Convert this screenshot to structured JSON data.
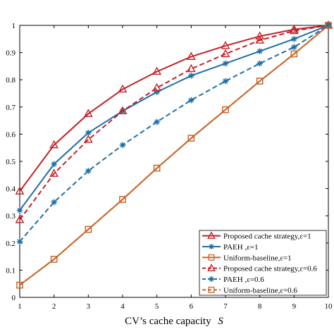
{
  "chart_data": {
    "type": "line",
    "title": "",
    "xlabel": "CV’s cache capacity",
    "xlabel_symbol": "S",
    "ylabel": "",
    "xlim": [
      1,
      10
    ],
    "ylim": [
      0,
      1
    ],
    "x": [
      1,
      2,
      3,
      4,
      5,
      6,
      7,
      8,
      9,
      10
    ],
    "xticks": [
      "1",
      "2",
      "3",
      "4",
      "5",
      "6",
      "7",
      "8",
      "9",
      "10"
    ],
    "yticks": [
      "0",
      "0.1",
      "0.2",
      "0.3",
      "0.4",
      "0.5",
      "0.6",
      "0.7",
      "0.8",
      "0.9",
      "1"
    ],
    "grid": false,
    "legend_position": "bottom-right",
    "series": [
      {
        "name": "Proposed cache strategy,ε=1",
        "color": "#c42026",
        "dash": "solid",
        "marker": "triangle",
        "values": [
          0.39,
          0.56,
          0.675,
          0.765,
          0.83,
          0.885,
          0.925,
          0.96,
          0.985,
          1.0
        ]
      },
      {
        "name": "PAEH ,ε=1",
        "color": "#1f6fa8",
        "dash": "solid",
        "marker": "star",
        "values": [
          0.32,
          0.49,
          0.605,
          0.685,
          0.755,
          0.815,
          0.86,
          0.905,
          0.95,
          1.0
        ]
      },
      {
        "name": "Uniform-baseline,ε=1",
        "color": "#c8652a",
        "dash": "solid",
        "marker": "square",
        "values": [
          0.045,
          0.14,
          0.25,
          0.36,
          0.475,
          0.585,
          0.69,
          0.795,
          0.895,
          1.0
        ]
      },
      {
        "name": "Proposed cache strategy,ε=0.6",
        "color": "#c42026",
        "dash": "dashed",
        "marker": "triangle",
        "values": [
          0.285,
          0.455,
          0.58,
          0.685,
          0.77,
          0.84,
          0.895,
          0.945,
          0.98,
          1.0
        ]
      },
      {
        "name": "PAEH ,ε=0.6",
        "color": "#1f6fa8",
        "dash": "dashed",
        "marker": "star",
        "values": [
          0.205,
          0.35,
          0.465,
          0.56,
          0.645,
          0.725,
          0.795,
          0.86,
          0.92,
          1.0
        ]
      },
      {
        "name": "Uniform-baseline,ε=0.6",
        "color": "#c8652a",
        "dash": "dashed",
        "marker": "square",
        "values": [
          0.045,
          0.14,
          0.25,
          0.36,
          0.475,
          0.585,
          0.69,
          0.795,
          0.895,
          1.0
        ]
      }
    ]
  }
}
